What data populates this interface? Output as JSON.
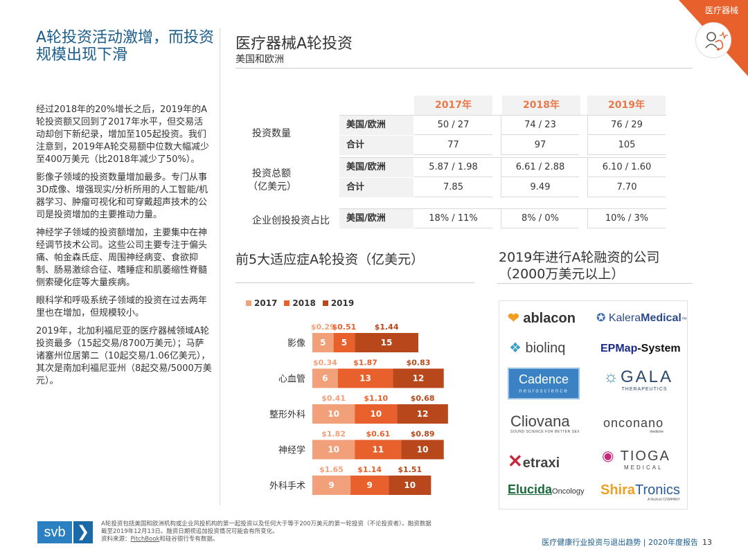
{
  "corner": {
    "label": "医疗器械",
    "icon": "medical-device-icon",
    "color": "#e8612c"
  },
  "headline": "A轮投资活动激增，而投资规模出现下滑",
  "body_paragraphs": [
    "经过2018年的20%增长之后，2019年的A轮投资额又回到了2017年水平，但交易活动却创下新纪录，增加至105起投资。我们注意到，2019年A轮交易额中位数大幅减少至400万美元（比2018年减少了50%）。",
    "影像子领域的投资数量增加最多。专门从事3D成像、增强现实/分析所用的人工智能/机器学习、肿瘤可视化和可穿戴超声技术的公司是投资增加的主要推动力量。",
    "神经学子领域的投资额增加，主要集中在神经调节技术公司。这些公司主要专注于偏头痛、帕金森氏症、周围神经病变、食欲抑制、肠易激综合征、嗜睡症和肌萎缩性脊髓侧索硬化症等大量疾病。",
    "眼科学和呼吸系统子领域的投资在过去两年里也在增加，但规模较小。",
    "2019年，北加利福尼亚的医疗器械领域A轮投资最多（15起交易/8700万美元）；马萨诸塞州位居第二（10起交易/1.06亿美元），其次是南加利福尼亚州（8起交易/5000万美元）。"
  ],
  "section": {
    "title": "医疗器械A轮投资",
    "subtitle": "美国和欧洲"
  },
  "table": {
    "years": [
      "2017年",
      "2018年",
      "2019年"
    ],
    "groups": [
      {
        "label": "投资数量",
        "rows": [
          {
            "key": "美国/欧洲",
            "values": [
              "50 / 27",
              "74 / 23",
              "76 / 29"
            ]
          },
          {
            "key": "合计",
            "values": [
              "77",
              "97",
              "105"
            ]
          }
        ]
      },
      {
        "label": "投资总额（亿美元）",
        "label_line1": "投资总额",
        "label_line2": "（亿美元）",
        "rows": [
          {
            "key": "美国/欧洲",
            "values": [
              "5.87 / 1.98",
              "6.61 / 2.88",
              "6.10 / 1.60"
            ]
          },
          {
            "key": "合计",
            "values": [
              "7.85",
              "9.49",
              "7.70"
            ]
          }
        ]
      },
      {
        "label": "企业创投投资占比",
        "rows": [
          {
            "key": "美国/欧洲",
            "values": [
              "18% / 11%",
              "8% / 0%",
              "10% / 3%"
            ]
          }
        ]
      }
    ]
  },
  "chart_title": "前5大适应症A轮投资（亿美元）",
  "chart_data": {
    "type": "bar",
    "orientation": "horizontal",
    "stacked": true,
    "title": "前5大适应症A轮投资（亿美元）",
    "categories": [
      "影像",
      "心血管",
      "整形外科",
      "神经学",
      "外科手术"
    ],
    "series": [
      {
        "name": "2017",
        "color": "#f2a07a",
        "values": [
          5,
          6,
          10,
          10,
          9
        ],
        "amounts": [
          "$0.29",
          "$0.34",
          "$0.41",
          "$1.82",
          "$1.65"
        ]
      },
      {
        "name": "2018",
        "color": "#e8612c",
        "values": [
          5,
          13,
          10,
          11,
          9
        ],
        "amounts": [
          "$0.51",
          "$1.87",
          "$1.10",
          "$0.61",
          "$1.14"
        ]
      },
      {
        "name": "2019",
        "color": "#b8481c",
        "values": [
          15,
          12,
          12,
          10,
          10
        ],
        "amounts": [
          "$1.44",
          "$0.83",
          "$0.68",
          "$0.89",
          "$1.51"
        ]
      }
    ],
    "legend_position": "top-left",
    "grid": false
  },
  "companies": {
    "title_line1": "2019年进行A轮融资的公司",
    "title_line2": "（2000万美元以上）",
    "logos": [
      {
        "name": "ablacon"
      },
      {
        "name": "KaleraMedical",
        "parts": [
          "Kalera",
          "Medical",
          "™"
        ]
      },
      {
        "name": "biolinq"
      },
      {
        "name": "EPMap-System",
        "parts": [
          "EPMap",
          "-System"
        ]
      },
      {
        "name": "Cadence",
        "tagline": "neuroscience"
      },
      {
        "name": "GALA",
        "tagline": "THERAPEUTICS"
      },
      {
        "name": "Cliovana",
        "display": "Cliovana",
        "tagline": "SOUND SCIENCE FOR BETTER SEX"
      },
      {
        "name": "onconano",
        "tagline": "medicine"
      },
      {
        "name": "Vetraxi",
        "display": "etraxi"
      },
      {
        "name": "TIOGA",
        "tagline": "MEDICAL"
      },
      {
        "name": "Elucida Oncology",
        "parts": [
          "Elucida",
          "Oncology"
        ]
      },
      {
        "name": "ShiraTronics",
        "parts": [
          "Shira",
          "Tronics"
        ],
        "tagline": "A NuXcel COMPANY"
      }
    ]
  },
  "footer": {
    "brand": "svb",
    "note_line1": "A轮投资包括美国和欧洲机构或企业风投机构的第一起投资以及任何大于等于200万美元的第一轮投资（不论投资者）。融资数据截至2019年12月13日。融资日期视追加投资情况可能会有所变化。",
    "source_prefix": "资料来源：",
    "source_link": "PitchBook",
    "source_suffix": "和硅谷银行专有数据。",
    "report": "医疗健康行业投资与退出趋势 | 2020年度报告",
    "page": "13"
  }
}
